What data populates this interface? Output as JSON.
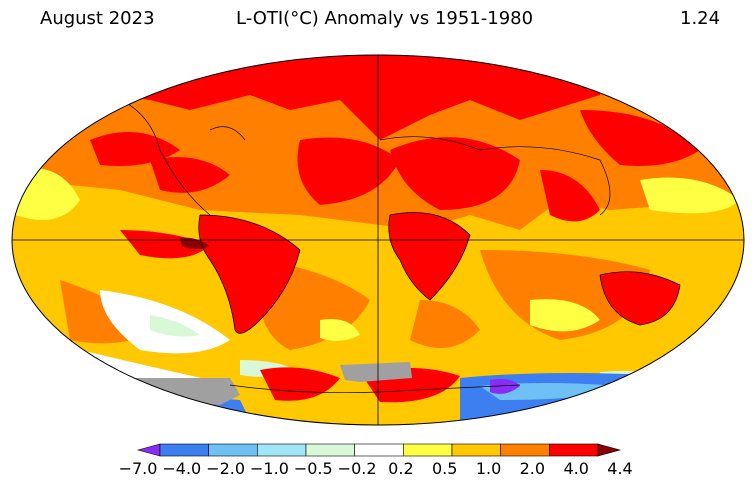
{
  "header": {
    "month": "August 2023",
    "title": "L-OTI(°C) Anomaly vs 1951-1980",
    "global_mean": "1.24"
  },
  "legend": {
    "bins": [
      {
        "color": "#8b2cf5"
      },
      {
        "color": "#3d7ff0"
      },
      {
        "color": "#6ec0f5"
      },
      {
        "color": "#a0e6f8"
      },
      {
        "color": "#d8f8d8"
      },
      {
        "color": "#ffffff"
      },
      {
        "color": "#ffff44"
      },
      {
        "color": "#ffc800"
      },
      {
        "color": "#ff8000"
      },
      {
        "color": "#ff0000"
      },
      {
        "color": "#8b0000"
      }
    ],
    "tick_labels": [
      "−7.0",
      "−4.0",
      "−2.0",
      "−1.0",
      "−0.5",
      "−0.2",
      "0.2",
      "0.5",
      "1.0",
      "2.0",
      "4.0",
      "4.4"
    ]
  },
  "colors": {
    "ocean_base": "#ffc800",
    "no_data": "#a0a0a0",
    "coastline": "#000000"
  }
}
